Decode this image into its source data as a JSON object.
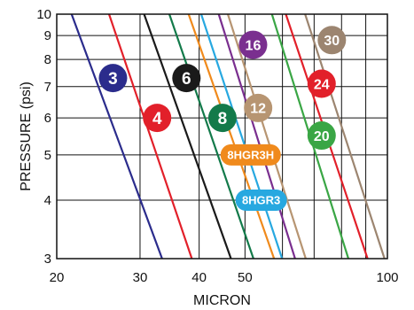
{
  "chart_data": {
    "type": "line",
    "xlabel": "MICRON",
    "ylabel": "PRESSURE (psi)",
    "x_scale": "log",
    "y_scale": "log",
    "xlim": [
      20,
      100
    ],
    "ylim": [
      3,
      10
    ],
    "x_ticks": [
      20,
      30,
      40,
      50,
      100
    ],
    "x_gridlines": [
      20,
      30,
      40,
      50,
      60,
      70,
      80,
      90,
      100
    ],
    "y_ticks": [
      3,
      4,
      5,
      6,
      7,
      8,
      9,
      10
    ],
    "grid": true,
    "series": [
      {
        "name": "3",
        "color": "#2b2c8c",
        "points": [
          [
            21.5,
            10
          ],
          [
            33.4,
            3
          ]
        ],
        "label_at": [
          26.3,
          7.3
        ]
      },
      {
        "name": "4",
        "color": "#e2202a",
        "points": [
          [
            25.8,
            10
          ],
          [
            38.6,
            3
          ]
        ],
        "label_at": [
          32.6,
          6.0
        ]
      },
      {
        "name": "6",
        "color": "#1a1a1a",
        "points": [
          [
            30.6,
            10
          ],
          [
            46.7,
            3
          ]
        ],
        "label_at": [
          37.6,
          7.3
        ]
      },
      {
        "name": "8",
        "color": "#137a4a",
        "points": [
          [
            34.6,
            10
          ],
          [
            52.1,
            3
          ]
        ],
        "label_at": [
          44.8,
          6.0
        ]
      },
      {
        "name": "8HGR3H",
        "color": "#f08a1c",
        "points": [
          [
            38.0,
            10
          ],
          [
            57.6,
            3
          ]
        ],
        "label_at": [
          51.4,
          5.0
        ]
      },
      {
        "name": "8HGR3",
        "color": "#27a8e0",
        "points": [
          [
            40.4,
            10
          ],
          [
            59.9,
            3
          ]
        ],
        "label_at": [
          54.1,
          4.0
        ]
      },
      {
        "name": "16",
        "color": "#7a2f8f",
        "points": [
          [
            44.0,
            10
          ],
          [
            63.8,
            3
          ]
        ],
        "label_at": [
          52.0,
          8.6
        ]
      },
      {
        "name": "12",
        "color": "#b79572",
        "points": [
          [
            46.0,
            10
          ],
          [
            67.2,
            3
          ]
        ],
        "label_at": [
          53.3,
          6.3
        ]
      },
      {
        "name": "20",
        "color": "#3aa645",
        "points": [
          [
            57.0,
            10
          ],
          [
            82.7,
            3
          ]
        ],
        "label_at": [
          72.6,
          5.5
        ]
      },
      {
        "name": "24",
        "color": "#e2202a",
        "points": [
          [
            61.0,
            10
          ],
          [
            90.8,
            3
          ]
        ],
        "label_at": [
          72.6,
          7.1
        ]
      },
      {
        "name": "30",
        "color": "#9c8570",
        "points": [
          [
            67.0,
            10
          ],
          [
            98.6,
            3
          ]
        ],
        "label_at": [
          76.3,
          8.8
        ]
      }
    ]
  }
}
